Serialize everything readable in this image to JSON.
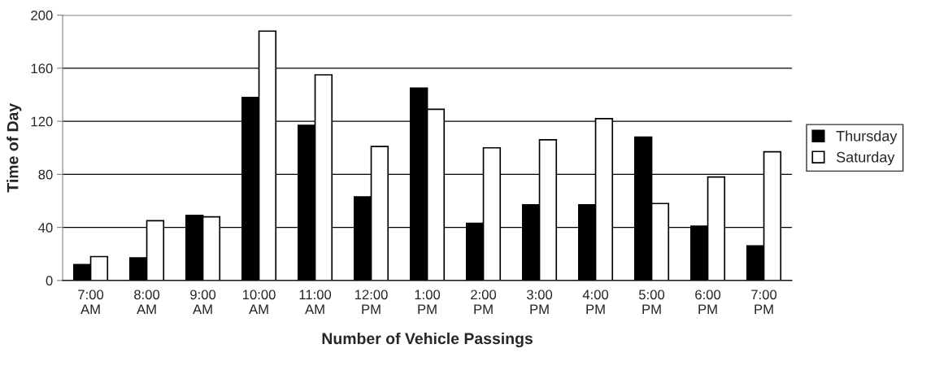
{
  "chart_data": {
    "type": "bar",
    "xlabel": "Number of Vehicle Passings",
    "ylabel": "Time of Day",
    "categories": [
      "7:00\nAM",
      "8:00\nAM",
      "9:00\nAM",
      "10:00\nAM",
      "11:00\nAM",
      "12:00\nPM",
      "1:00\nPM",
      "2:00\nPM",
      "3:00\nPM",
      "4:00\nPM",
      "5:00\nPM",
      "6:00\nPM",
      "7:00\nPM"
    ],
    "series": [
      {
        "name": "Thursday",
        "color": "#000000",
        "values": [
          12,
          17,
          49,
          138,
          117,
          63,
          145,
          43,
          57,
          57,
          108,
          41,
          26
        ]
      },
      {
        "name": "Saturday",
        "color": "#ffffff",
        "values": [
          18,
          45,
          48,
          188,
          155,
          101,
          129,
          100,
          106,
          122,
          58,
          78,
          97
        ]
      }
    ],
    "ylim": [
      0,
      200
    ],
    "yticks": [
      0,
      40,
      80,
      120,
      160,
      200
    ],
    "grid": "y",
    "legend": "right"
  }
}
